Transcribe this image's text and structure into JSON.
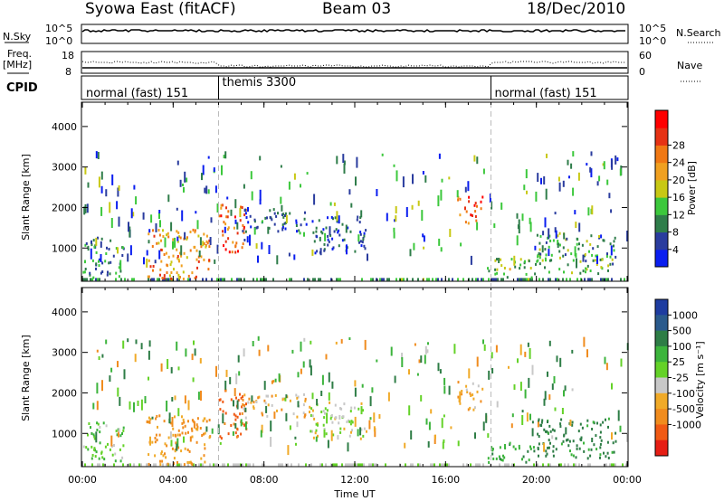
{
  "header": {
    "radar_title": "Syowa East (fitACF)",
    "beam": "Beam 03",
    "date": "18/Dec/2010"
  },
  "nsky_panel": {
    "left_label": "N.Sky",
    "right_label": "N.Search",
    "left_ticks": [
      "10^5",
      "10^0"
    ],
    "right_ticks": [
      "10^5",
      "10^0"
    ]
  },
  "freq_panel": {
    "left_label_line1": "Freq.",
    "left_label_line2": "[MHz]",
    "left_ticks": [
      "18",
      "8"
    ],
    "right_label": "Nave",
    "right_ticks": [
      "60",
      "0"
    ]
  },
  "cpid": {
    "label": "CPID",
    "modes": [
      {
        "name": "normal (fast) 151",
        "start_hour": 0
      },
      {
        "name": "themis 3300",
        "start_hour": 6
      },
      {
        "name": "normal (fast) 151",
        "start_hour": 18
      }
    ]
  },
  "x_axis": {
    "label": "Time UT",
    "range_hours": [
      0,
      24
    ],
    "tick_labels": [
      "00:00",
      "04:00",
      "08:00",
      "12:00",
      "16:00",
      "20:00",
      "00:00"
    ]
  },
  "power_panel": {
    "ylabel": "Slant Range [km]",
    "y_tick_labels": [
      "1000",
      "2000",
      "3000",
      "4000"
    ],
    "colorbar_label": "Power [dB]",
    "colorbar_ticks": [
      "4",
      "8",
      "12",
      "16",
      "20",
      "24",
      "28"
    ],
    "colors": [
      "#0a1ef0",
      "#2a3c9e",
      "#2f7d4a",
      "#3cc83c",
      "#c8c814",
      "#f0a020",
      "#f07814",
      "#e63214",
      "#ff0000"
    ]
  },
  "velocity_panel": {
    "ylabel": "Slant Range [km]",
    "y_tick_labels": [
      "1000",
      "2000",
      "3000",
      "4000"
    ],
    "colorbar_label": "Velocity [m s⁻¹]",
    "colorbar_ticks": [
      "1000",
      "500",
      "100",
      "25",
      "-25",
      "-100",
      "-500",
      "-1000"
    ],
    "colors": [
      "#1e3ca0",
      "#2a5a8c",
      "#2e7d46",
      "#3cb43c",
      "#64d228",
      "#c8c8c8",
      "#f0aa28",
      "#f08c1e",
      "#f05a14",
      "#e61e14"
    ]
  },
  "chart_data": {
    "type": "heatmap",
    "x_range_hours": [
      0,
      24
    ],
    "y_range_km": [
      180,
      4600
    ],
    "panels": [
      "Power [dB]",
      "Velocity [m s⁻¹]"
    ],
    "power_scale_db": [
      0,
      30
    ],
    "velocity_scale_ms": [
      -1000,
      1000
    ],
    "scatter_regions": [
      {
        "t": [
          0.0,
          1.8
        ],
        "r": [
          300,
          1300
        ],
        "power": 8,
        "velocity": 80
      },
      {
        "t": [
          2.8,
          5.6
        ],
        "r": [
          250,
          1500
        ],
        "power": 20,
        "velocity": -120
      },
      {
        "t": [
          6.0,
          7.2
        ],
        "r": [
          900,
          2100
        ],
        "power": 24,
        "velocity": -300
      },
      {
        "t": [
          7.0,
          10.0
        ],
        "r": [
          1400,
          2000
        ],
        "power": 6,
        "velocity": -60
      },
      {
        "t": [
          10.0,
          12.5
        ],
        "r": [
          900,
          1800
        ],
        "power": 5,
        "velocity": 20
      },
      {
        "t": [
          16.5,
          17.6
        ],
        "r": [
          1600,
          2300
        ],
        "power": 24,
        "velocity": -80
      },
      {
        "t": [
          17.8,
          20.0
        ],
        "r": [
          300,
          800
        ],
        "power": 12,
        "velocity": 200
      },
      {
        "t": [
          20.0,
          23.5
        ],
        "r": [
          400,
          1400
        ],
        "power": 10,
        "velocity": 300
      }
    ]
  }
}
